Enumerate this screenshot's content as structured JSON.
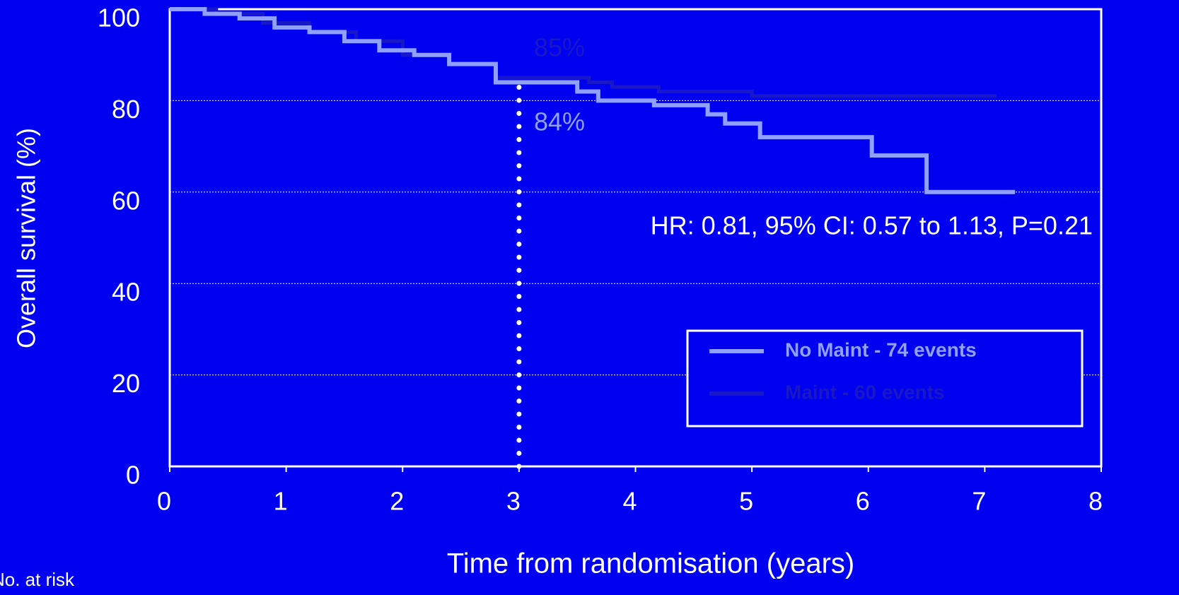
{
  "chart_data": {
    "type": "step",
    "xlabel": "Time from randomisation (years)",
    "ylabel": "Overall survival (%)",
    "xlim": [
      0,
      8
    ],
    "xticks": [
      0,
      1,
      2,
      3,
      4,
      5,
      6,
      7,
      8
    ],
    "ylim": [
      0,
      100
    ],
    "yticks": [
      0,
      20,
      40,
      60,
      80,
      100
    ],
    "grid": true,
    "legend": "lower right",
    "series": [
      {
        "name": "No Maint - 74 events",
        "color": "#8fa0ff",
        "x": [
          0,
          0.3,
          0.3,
          0.6,
          0.6,
          0.9,
          0.9,
          1.2,
          1.2,
          1.5,
          1.5,
          1.8,
          1.8,
          2.1,
          2.1,
          2.4,
          2.4,
          2.8,
          2.8,
          3.5,
          3.5,
          3.68,
          3.68,
          4.16,
          4.16,
          4.62,
          4.62,
          4.77,
          4.77,
          5.07,
          5.07,
          6.03,
          6.03,
          6.5,
          6.5,
          7.26
        ],
        "values": [
          100,
          100,
          99,
          99,
          98,
          98,
          96,
          96,
          95,
          95,
          93,
          93,
          91,
          91,
          90,
          90,
          88,
          88,
          84,
          84,
          82,
          82,
          80,
          80,
          79,
          79,
          77,
          77,
          75,
          75,
          72,
          72,
          68,
          68,
          60,
          60
        ]
      },
      {
        "name": "Maint - 60 events",
        "color": "#1818c8",
        "x": [
          0,
          0.4,
          0.4,
          0.8,
          0.8,
          1.2,
          1.2,
          1.6,
          1.6,
          2,
          2,
          2.4,
          2.4,
          2.8,
          2.8,
          3.6,
          3.6,
          3.8,
          3.8,
          4.2,
          4.2,
          5,
          5,
          7.1
        ],
        "values": [
          100,
          100,
          99,
          99,
          97,
          97,
          95,
          95,
          93,
          93,
          90,
          90,
          88,
          88,
          85,
          85,
          84,
          84,
          83,
          83,
          82,
          82,
          81,
          81
        ]
      }
    ],
    "annotations": [
      {
        "text": "85%",
        "color": "#1818c8"
      },
      {
        "text": "84%",
        "color": "#8fa0ff"
      },
      {
        "text": "HR: 0.81, 95% CI: 0.57 to 1.13, P=0.21",
        "color": "#ffffff"
      }
    ],
    "marker_x": 3,
    "footnote": "No. at risk"
  }
}
